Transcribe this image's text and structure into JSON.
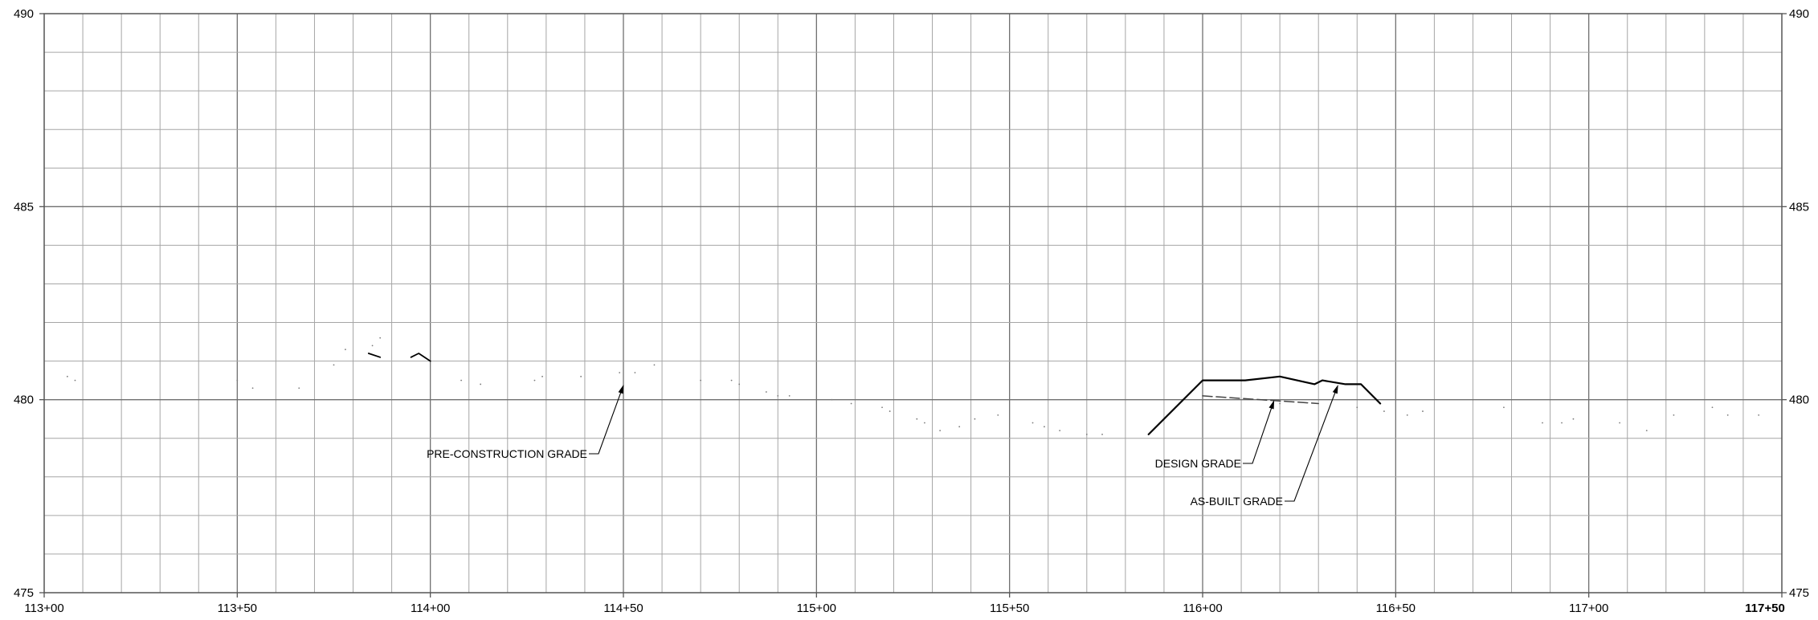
{
  "chart_data": {
    "type": "line",
    "title": "",
    "xlabel": "",
    "ylabel": "",
    "xlim": [
      11300,
      11750
    ],
    "ylim": [
      475,
      490
    ],
    "grid": true,
    "x_ticks": [
      {
        "value": 11300,
        "label": "113+00"
      },
      {
        "value": 11350,
        "label": "113+50"
      },
      {
        "value": 11400,
        "label": "114+00"
      },
      {
        "value": 11450,
        "label": "114+50"
      },
      {
        "value": 11500,
        "label": "115+00"
      },
      {
        "value": 11550,
        "label": "115+50"
      },
      {
        "value": 11600,
        "label": "116+00"
      },
      {
        "value": 11650,
        "label": "116+50"
      },
      {
        "value": 11700,
        "label": "117+00"
      },
      {
        "value": 11750,
        "label": "117+50"
      }
    ],
    "y_ticks": [
      {
        "value": 490,
        "label": "490"
      },
      {
        "value": 485,
        "label": "485"
      },
      {
        "value": 480,
        "label": "480"
      },
      {
        "value": 475,
        "label": "475"
      }
    ],
    "series": [
      {
        "style": "dotted",
        "points": [
          [
            11306,
            480.6
          ],
          [
            11308,
            480.5
          ],
          [
            11350,
            480.5
          ],
          [
            11354,
            480.3
          ],
          [
            11366,
            480.3
          ],
          [
            11375,
            480.9
          ],
          [
            11378,
            481.3
          ],
          [
            11385,
            481.4
          ],
          [
            11387,
            481.6
          ],
          [
            11408,
            480.5
          ],
          [
            11413,
            480.4
          ],
          [
            11427,
            480.5
          ],
          [
            11429,
            480.6
          ],
          [
            11439,
            480.6
          ],
          [
            11449,
            480.7
          ],
          [
            11453,
            480.7
          ],
          [
            11458,
            480.9
          ],
          [
            11470,
            480.5
          ],
          [
            11478,
            480.5
          ],
          [
            11480,
            480.4
          ],
          [
            11487,
            480.2
          ],
          [
            11490,
            480.1
          ],
          [
            11493,
            480.1
          ],
          [
            11504,
            480.0
          ],
          [
            11509,
            479.9
          ],
          [
            11517,
            479.8
          ],
          [
            11519,
            479.7
          ],
          [
            11526,
            479.5
          ],
          [
            11528,
            479.4
          ],
          [
            11532,
            479.2
          ],
          [
            11537,
            479.3
          ],
          [
            11541,
            479.5
          ],
          [
            11547,
            479.6
          ],
          [
            11556,
            479.4
          ],
          [
            11559,
            479.3
          ],
          [
            11563,
            479.2
          ],
          [
            11570,
            479.1
          ],
          [
            11574,
            479.1
          ],
          [
            11620,
            479.9
          ],
          [
            11640,
            479.8
          ],
          [
            11647,
            479.7
          ],
          [
            11653,
            479.6
          ],
          [
            11657,
            479.7
          ],
          [
            11678,
            479.8
          ],
          [
            11688,
            479.4
          ],
          [
            11693,
            479.4
          ],
          [
            11696,
            479.5
          ],
          [
            11708,
            479.4
          ],
          [
            11715,
            479.2
          ],
          [
            11722,
            479.6
          ],
          [
            11732,
            479.8
          ],
          [
            11736,
            479.6
          ],
          [
            11744,
            479.6
          ]
        ]
      },
      {
        "style": "solid-thin",
        "points": [
          [
            11384,
            481.2
          ],
          [
            11387,
            481.1
          ]
        ]
      },
      {
        "style": "solid-thin",
        "points": [
          [
            11395,
            481.1
          ],
          [
            11397,
            481.2
          ],
          [
            11400,
            481.0
          ]
        ]
      },
      {
        "style": "dashed",
        "points": [
          [
            11600,
            480.1
          ],
          [
            11630,
            479.9
          ]
        ]
      },
      {
        "style": "solid",
        "points": [
          [
            11586,
            479.1
          ],
          [
            11600,
            480.5
          ],
          [
            11611,
            480.5
          ],
          [
            11620,
            480.6
          ],
          [
            11629,
            480.4
          ],
          [
            11631,
            480.5
          ],
          [
            11637,
            480.4
          ],
          [
            11641,
            480.4
          ],
          [
            11646,
            479.9
          ]
        ]
      }
    ],
    "annotations": [
      {
        "text": "PRE-CONSTRUCTION GRADE",
        "pointer": [
          11449.5,
          480.4
        ]
      },
      {
        "text": "DESIGN GRADE",
        "pointer": [
          11618,
          480.0
        ]
      },
      {
        "text": "AS-BUILT GRADE",
        "pointer": [
          11634.5,
          480.4
        ]
      }
    ]
  }
}
